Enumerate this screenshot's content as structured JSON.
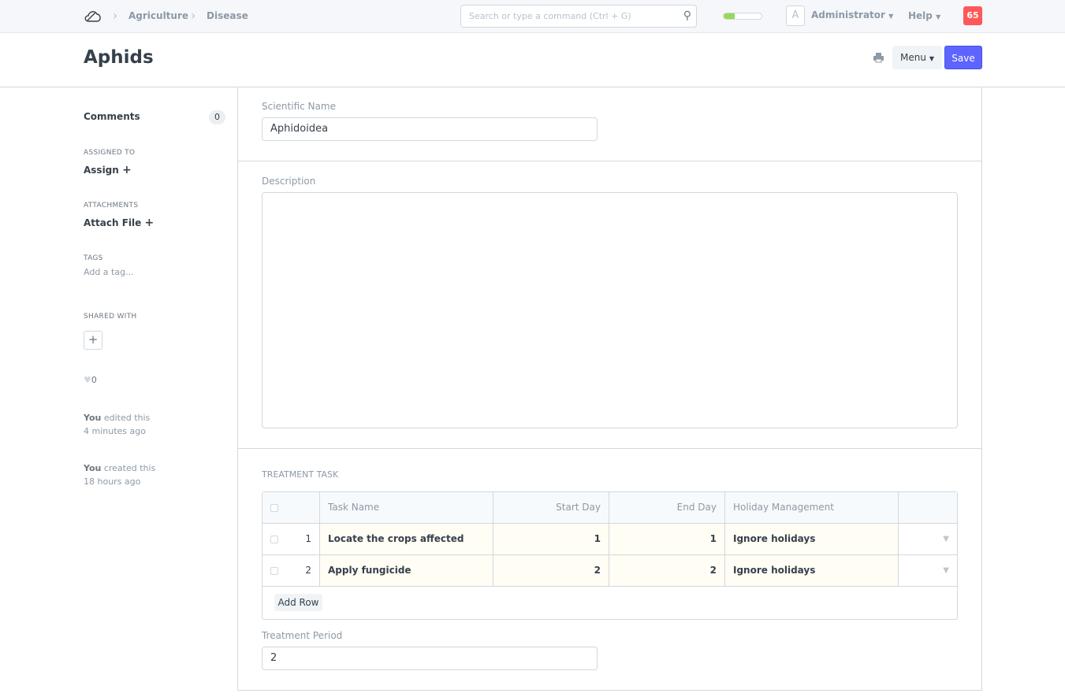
{
  "navbar": {
    "breadcrumbs": [
      "Agriculture",
      "Disease"
    ],
    "search_placeholder": "Search or type a command (Ctrl + G)",
    "progress_percent": 30,
    "avatar_letter": "A",
    "user": "Administrator",
    "help": "Help",
    "notification_count": "65"
  },
  "page": {
    "title": "Aphids",
    "menu_label": "Menu",
    "save_label": "Save"
  },
  "sidebar": {
    "comments_label": "Comments",
    "comments_count": "0",
    "assigned_heading": "ASSIGNED TO",
    "assign_label": "Assign",
    "attachments_heading": "ATTACHMENTS",
    "attach_label": "Attach File",
    "tags_heading": "TAGS",
    "tags_placeholder": "Add a tag...",
    "shared_heading": "SHARED WITH",
    "likes": "0",
    "activity": [
      {
        "who": "You",
        "action": " edited this",
        "when": "4 minutes ago"
      },
      {
        "who": "You",
        "action": " created this",
        "when": "18 hours ago"
      }
    ]
  },
  "form": {
    "scientific_name_label": "Scientific Name",
    "scientific_name": "Aphidoidea",
    "description_label": "Description",
    "description": "",
    "treatment_heading": "TREATMENT TASK",
    "columns": [
      "Task Name",
      "Start Day",
      "End Day",
      "Holiday Management"
    ],
    "rows": [
      {
        "idx": "1",
        "task": "Locate the crops affected",
        "start": "1",
        "end": "1",
        "holiday": "Ignore holidays"
      },
      {
        "idx": "2",
        "task": "Apply fungicide",
        "start": "2",
        "end": "2",
        "holiday": "Ignore holidays"
      }
    ],
    "add_row": "Add Row",
    "treatment_period_label": "Treatment Period",
    "treatment_period": "2"
  },
  "colors": {
    "primary": "#5e64ff",
    "badge": "#ff5858",
    "progress": "#98d85b"
  }
}
